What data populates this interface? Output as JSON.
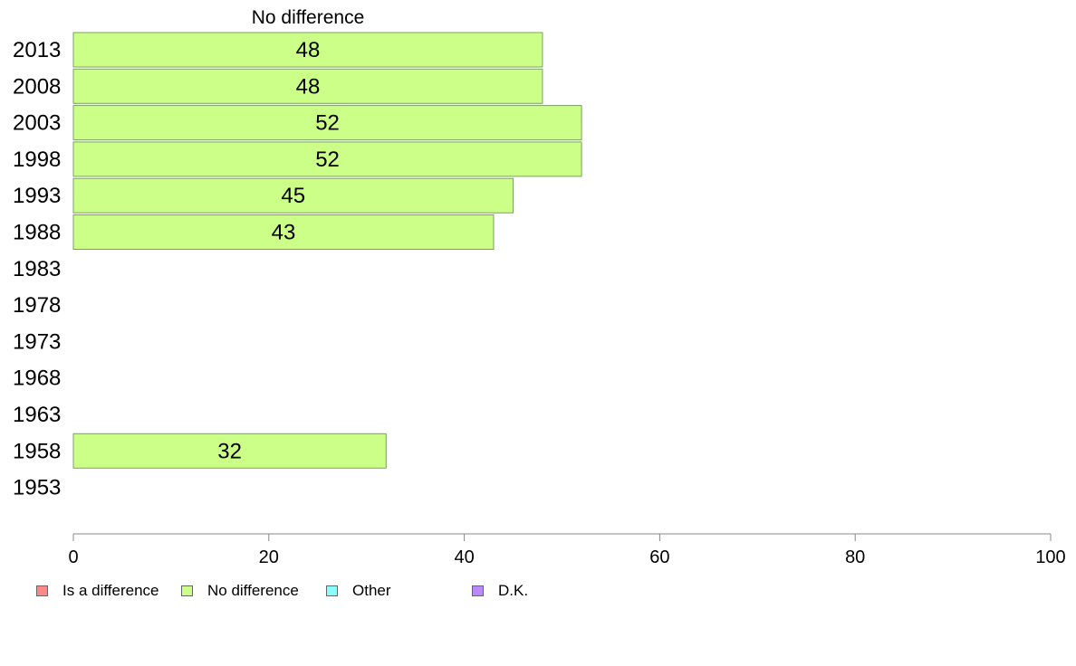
{
  "chart_data": {
    "type": "bar",
    "orientation": "horizontal",
    "title": "No difference",
    "categories": [
      "2013",
      "2008",
      "2003",
      "1998",
      "1993",
      "1988",
      "1983",
      "1978",
      "1973",
      "1968",
      "1963",
      "1958",
      "1953"
    ],
    "series": [
      {
        "name": "No difference",
        "color": "#ccff88",
        "values": [
          48,
          48,
          52,
          52,
          45,
          43,
          null,
          null,
          null,
          null,
          null,
          32,
          null
        ]
      }
    ],
    "xlim": [
      0,
      100
    ],
    "xticks": [
      "0",
      "20",
      "40",
      "60",
      "80",
      "100"
    ],
    "grid": false,
    "legend_position": "bottom-left"
  },
  "legend": {
    "items": [
      {
        "label": "Is a difference",
        "color": "#ff8888"
      },
      {
        "label": "No difference",
        "color": "#ccff88"
      },
      {
        "label": "Other",
        "color": "#88ffff"
      },
      {
        "label": "D.K.",
        "color": "#bb88ff"
      }
    ]
  }
}
